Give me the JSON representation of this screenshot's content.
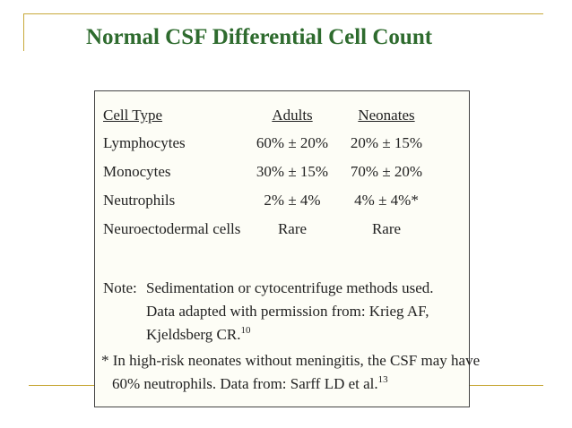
{
  "slide": {
    "title": "Normal CSF Differential Cell Count"
  },
  "table": {
    "headers": {
      "cell_type": "Cell Type",
      "adults": "Adults",
      "neonates": "Neonates"
    },
    "rows": [
      {
        "cell_type": "Lymphocytes",
        "adults": "60% ± 20%",
        "neonates": "20% ± 15%"
      },
      {
        "cell_type": "Monocytes",
        "adults": "30% ± 15%",
        "neonates": "70% ± 20%"
      },
      {
        "cell_type": "Neutrophils",
        "adults": "2% ± 4%",
        "neonates": "4% ± 4%*"
      },
      {
        "cell_type": "Neuroectodermal cells",
        "adults": "Rare",
        "neonates": "Rare"
      }
    ]
  },
  "notes": {
    "label": "Note:",
    "line1": "Sedimentation or cytocentrifuge methods used.",
    "line2": "Data adapted with permission from: Krieg AF,",
    "line3": "Kjeldsberg CR.",
    "line3_sup": "10",
    "footnote1": "* In high-risk neonates without meningitis, the CSF may have",
    "footnote2": "60% neutrophils.  Data from: Sarff LD et al.",
    "footnote2_sup": "13"
  },
  "colors": {
    "title": "#2e6b2e",
    "accent_line": "#c8a93a"
  }
}
